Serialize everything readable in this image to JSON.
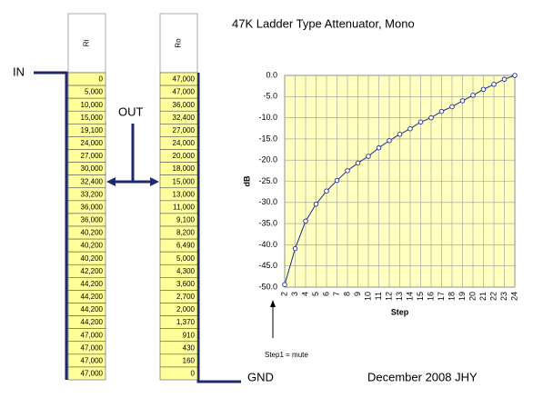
{
  "title": "47K Ladder Type Attenuator, Mono",
  "labels": {
    "in": "IN",
    "out": "OUT",
    "gnd": "GND",
    "footer": "December 2008 JHY",
    "mute_note": "Step1 = mute"
  },
  "ri": {
    "header": "Ri",
    "values": [
      "0",
      "5,000",
      "10,000",
      "15,000",
      "19,100",
      "24,000",
      "27,000",
      "30,000",
      "32,400",
      "33,200",
      "36,000",
      "36,000",
      "40,200",
      "40,200",
      "40,200",
      "42,200",
      "44,200",
      "44,200",
      "44,200",
      "44,200",
      "47,000",
      "47,000",
      "47,000",
      "47,000"
    ]
  },
  "ro": {
    "header": "Ro",
    "values": [
      "47,000",
      "47,000",
      "36,000",
      "32,400",
      "27,000",
      "24,000",
      "20,000",
      "18,000",
      "15,000",
      "13,000",
      "11,000",
      "9,100",
      "8,200",
      "6,490",
      "5,000",
      "4,300",
      "3,600",
      "2,700",
      "2,000",
      "1,370",
      "910",
      "430",
      "160",
      "0"
    ]
  },
  "chart_data": {
    "type": "line",
    "x_label": "Step",
    "y_label": "dB",
    "color": "#1f2a8c",
    "grid": true,
    "x": [
      2,
      3,
      4,
      5,
      6,
      7,
      8,
      9,
      10,
      11,
      12,
      13,
      14,
      15,
      16,
      17,
      18,
      19,
      20,
      21,
      22,
      23,
      24
    ],
    "values": [
      -49.4,
      -40.9,
      -34.4,
      -30.4,
      -27.3,
      -24.8,
      -22.5,
      -20.7,
      -19.1,
      -17.1,
      -15.4,
      -13.9,
      -12.6,
      -11.0,
      -10.0,
      -8.5,
      -7.4,
      -6.0,
      -4.7,
      -3.3,
      -2.1,
      -0.9,
      0
    ],
    "xlim": [
      2,
      24
    ],
    "xticks": [
      2,
      3,
      4,
      5,
      6,
      7,
      8,
      9,
      10,
      11,
      12,
      13,
      14,
      15,
      16,
      17,
      18,
      19,
      20,
      21,
      22,
      23,
      24
    ],
    "ylim": [
      -50,
      0
    ],
    "yticks": [
      {
        "value": -50,
        "label": "-50.0"
      },
      {
        "value": -45,
        "label": "-45.0"
      },
      {
        "value": -40,
        "label": "-40.0"
      },
      {
        "value": -35,
        "label": "-35.0"
      },
      {
        "value": -30,
        "label": "-30.0"
      },
      {
        "value": -25,
        "label": "-25.0"
      },
      {
        "value": -20,
        "label": "-20.0"
      },
      {
        "value": -15,
        "label": "-15.0"
      },
      {
        "value": -10,
        "label": "-10.0"
      },
      {
        "value": -5,
        "label": "-5.0"
      },
      {
        "value": 0,
        "label": "0.0"
      }
    ]
  }
}
